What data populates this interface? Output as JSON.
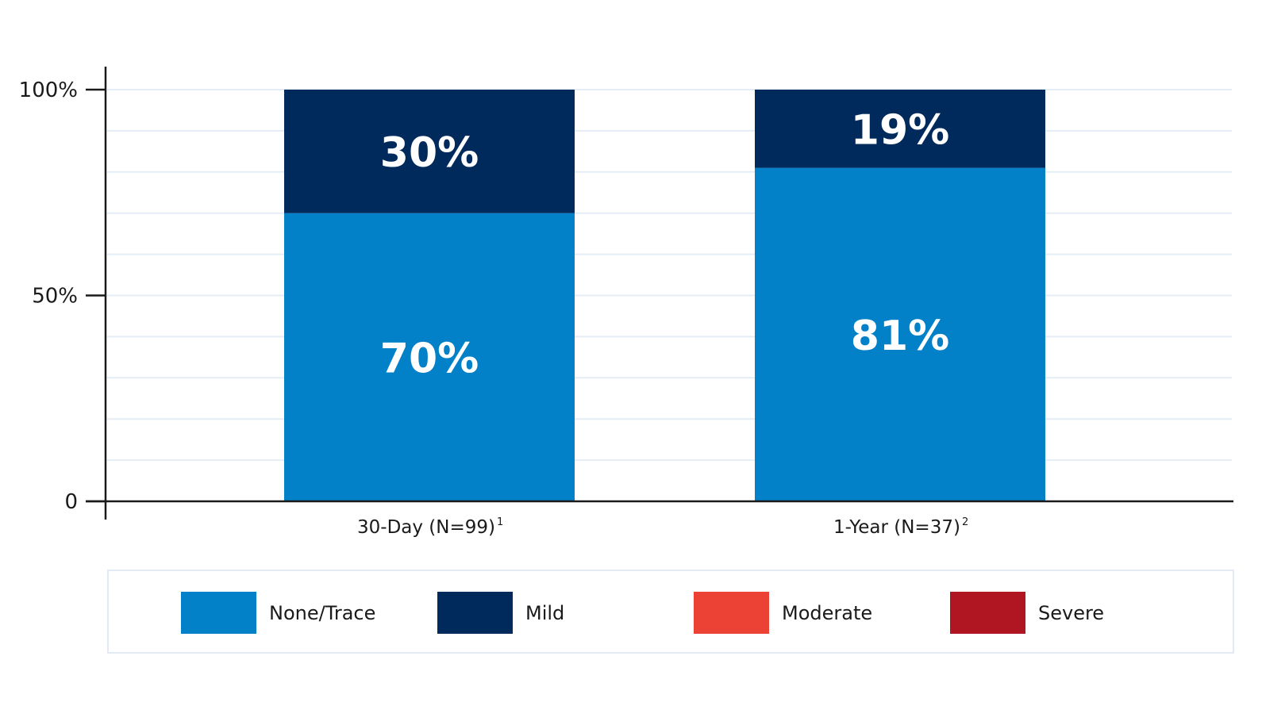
{
  "chart_data": {
    "type": "bar",
    "stacked": true,
    "categories": [
      {
        "label": "30-Day (N=99)",
        "sup": "1"
      },
      {
        "label": "1-Year (N=37)",
        "sup": "2"
      }
    ],
    "series": [
      {
        "name": "None/Trace",
        "values": [
          70,
          81
        ],
        "data_labels": [
          "70%",
          "81%"
        ],
        "color": "#0280C8"
      },
      {
        "name": "Mild",
        "values": [
          30,
          19
        ],
        "data_labels": [
          "30%",
          "19%"
        ],
        "color": "#002A5C"
      },
      {
        "name": "Moderate",
        "values": [
          0,
          0
        ],
        "data_labels": [
          "",
          ""
        ],
        "color": "#EC4135"
      },
      {
        "name": "Severe",
        "values": [
          0,
          0
        ],
        "data_labels": [
          "",
          ""
        ],
        "color": "#AF1622"
      }
    ],
    "y_ticks": [
      {
        "value": 0,
        "label": "0"
      },
      {
        "value": 50,
        "label": "50%"
      },
      {
        "value": 100,
        "label": "100%"
      }
    ],
    "ylim": [
      0,
      100
    ],
    "gridline_step": 10,
    "grid": true,
    "legend_position": "bottom",
    "title": "",
    "xlabel": "",
    "ylabel": ""
  }
}
